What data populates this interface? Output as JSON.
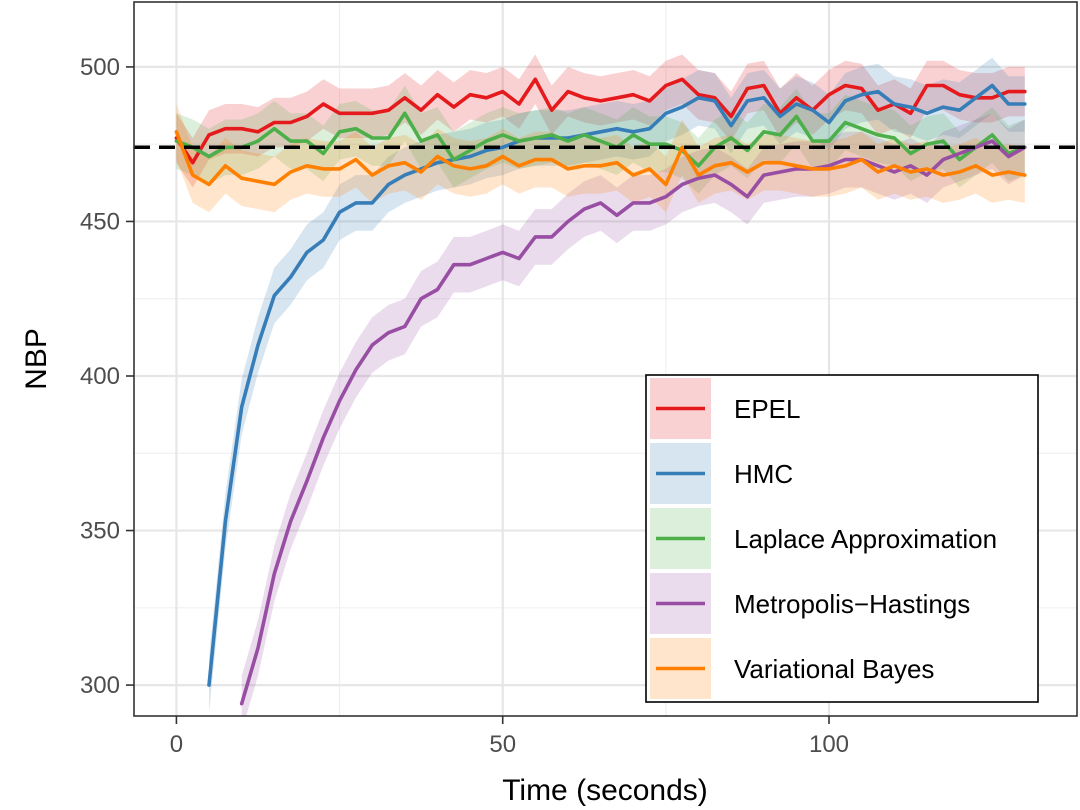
{
  "chart_data": {
    "type": "line",
    "title": "",
    "xlabel": "Time (seconds)",
    "ylabel": "NBP",
    "xlim": [
      -6.5,
      138
    ],
    "ylim": [
      290,
      521
    ],
    "x_ticks": [
      0,
      50,
      100
    ],
    "x_tick_labels": [
      "0",
      "50",
      "100"
    ],
    "y_ticks": [
      300,
      350,
      400,
      450,
      500
    ],
    "y_tick_labels": [
      "300",
      "350",
      "400",
      "450",
      "500"
    ],
    "reference_line": {
      "y": 474,
      "style": "dashed",
      "color": "#000000"
    },
    "legend_position": "bottom-right",
    "grid": true,
    "series": [
      {
        "name": "EPEL",
        "color": "#E41A1C",
        "x": [
          0,
          2.5,
          5,
          7.5,
          10,
          12.5,
          15,
          17.5,
          20,
          22.5,
          25,
          27.5,
          30,
          32.5,
          35,
          37.5,
          40,
          42.5,
          45,
          47.5,
          50,
          52.5,
          55,
          57.5,
          60,
          62.5,
          65,
          67.5,
          70,
          72.5,
          75,
          77.5,
          80,
          82.5,
          85,
          87.5,
          90,
          92.5,
          95,
          97.5,
          100,
          102.5,
          105,
          107.5,
          110,
          112.5,
          115,
          117.5,
          120,
          122.5,
          125,
          127.5,
          130
        ],
        "y": [
          477,
          469,
          478,
          480,
          480,
          479,
          482,
          482,
          484,
          488,
          485,
          485,
          485,
          486,
          490,
          486,
          491,
          487,
          491,
          490,
          492,
          488,
          496,
          486,
          492,
          490,
          489,
          490,
          491,
          489,
          494,
          496,
          491,
          490,
          484,
          493,
          494,
          485,
          490,
          486,
          491,
          494,
          493,
          486,
          488,
          485,
          494,
          494,
          491,
          490,
          490,
          492,
          492
        ],
        "band": 8
      },
      {
        "name": "HMC",
        "color": "#377EB8",
        "x": [
          5,
          7.5,
          10,
          12.5,
          15,
          17.5,
          20,
          22.5,
          25,
          27.5,
          30,
          32.5,
          35,
          37.5,
          40,
          42.5,
          45,
          47.5,
          50,
          52.5,
          55,
          57.5,
          60,
          62.5,
          65,
          67.5,
          70,
          72.5,
          75,
          77.5,
          80,
          82.5,
          85,
          87.5,
          90,
          92.5,
          95,
          97.5,
          100,
          102.5,
          105,
          107.5,
          110,
          112.5,
          115,
          117.5,
          120,
          122.5,
          125,
          127.5,
          130
        ],
        "y": [
          300,
          353,
          390,
          410,
          426,
          432,
          440,
          444,
          453,
          456,
          456,
          462,
          465,
          467,
          469,
          470,
          471,
          473,
          474,
          476,
          477,
          477,
          477,
          478,
          479,
          480,
          479,
          480,
          485,
          487,
          490,
          489,
          481,
          489,
          490,
          484,
          488,
          486,
          482,
          489,
          491,
          492,
          488,
          487,
          485,
          487,
          486,
          490,
          494,
          488,
          488
        ],
        "band": 9
      },
      {
        "name": "Laplace Approximation",
        "color": "#4DAF4A",
        "x": [
          0,
          2.5,
          5,
          7.5,
          10,
          12.5,
          15,
          17.5,
          20,
          22.5,
          25,
          27.5,
          30,
          32.5,
          35,
          37.5,
          40,
          42.5,
          45,
          47.5,
          50,
          52.5,
          55,
          57.5,
          60,
          62.5,
          65,
          67.5,
          70,
          72.5,
          75,
          77.5,
          80,
          82.5,
          85,
          87.5,
          90,
          92.5,
          95,
          97.5,
          100,
          102.5,
          105,
          107.5,
          110,
          112.5,
          115,
          117.5,
          120,
          122.5,
          125,
          127.5,
          130
        ],
        "y": [
          476,
          474,
          471,
          474,
          474,
          476,
          480,
          476,
          476,
          472,
          479,
          480,
          477,
          477,
          485,
          476,
          478,
          470,
          473,
          476,
          478,
          476,
          477,
          478,
          476,
          478,
          476,
          474,
          478,
          475,
          475,
          473,
          468,
          474,
          477,
          473,
          479,
          478,
          484,
          476,
          476,
          482,
          480,
          478,
          477,
          472,
          475,
          476,
          470,
          474,
          478,
          472,
          474
        ],
        "band": 9
      },
      {
        "name": "Metropolis−Hastings",
        "color": "#984EA3",
        "x": [
          10,
          12.5,
          15,
          17.5,
          20,
          22.5,
          25,
          27.5,
          30,
          32.5,
          35,
          37.5,
          40,
          42.5,
          45,
          47.5,
          50,
          52.5,
          55,
          57.5,
          60,
          62.5,
          65,
          67.5,
          70,
          72.5,
          75,
          77.5,
          80,
          82.5,
          85,
          87.5,
          90,
          92.5,
          95,
          97.5,
          100,
          102.5,
          105,
          107.5,
          110,
          112.5,
          115,
          117.5,
          120,
          122.5,
          125,
          127.5,
          130
        ],
        "y": [
          294,
          312,
          336,
          353,
          366,
          380,
          392,
          402,
          410,
          414,
          416,
          425,
          428,
          436,
          436,
          438,
          440,
          438,
          445,
          445,
          450,
          454,
          456,
          452,
          456,
          456,
          458,
          462,
          464,
          465,
          462,
          458,
          465,
          466,
          467,
          467,
          468,
          470,
          470,
          468,
          466,
          468,
          465,
          470,
          472,
          474,
          476,
          471,
          474
        ],
        "band": 9
      },
      {
        "name": "Variational Bayes",
        "color": "#FF7F00",
        "x": [
          0,
          2.5,
          5,
          7.5,
          10,
          12.5,
          15,
          17.5,
          20,
          22.5,
          25,
          27.5,
          30,
          32.5,
          35,
          37.5,
          40,
          42.5,
          45,
          47.5,
          50,
          52.5,
          55,
          57.5,
          60,
          62.5,
          65,
          67.5,
          70,
          72.5,
          75,
          77.5,
          80,
          82.5,
          85,
          87.5,
          90,
          92.5,
          95,
          97.5,
          100,
          102.5,
          105,
          107.5,
          110,
          112.5,
          115,
          117.5,
          120,
          122.5,
          125,
          127.5,
          130
        ],
        "y": [
          479,
          465,
          462,
          468,
          464,
          463,
          462,
          466,
          468,
          467,
          467,
          470,
          465,
          468,
          469,
          466,
          471,
          468,
          467,
          468,
          471,
          468,
          470,
          470,
          467,
          468,
          468,
          469,
          465,
          467,
          462,
          474,
          465,
          468,
          469,
          466,
          469,
          469,
          468,
          467,
          467,
          468,
          470,
          466,
          468,
          466,
          467,
          465,
          466,
          468,
          465,
          466,
          465
        ],
        "band": 9
      }
    ]
  }
}
